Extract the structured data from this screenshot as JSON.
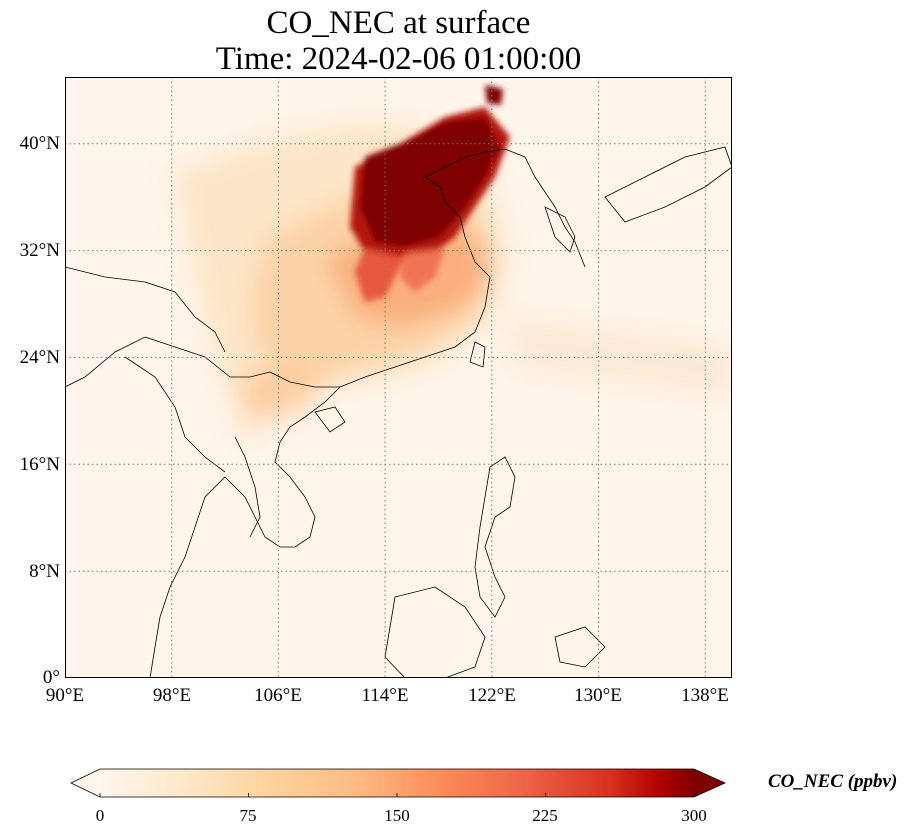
{
  "map": {
    "title_line1": "CO_NEC at surface",
    "title_line2": "Time: 2024-02-06 01:00:00",
    "lon_ticks": [
      "90°E",
      "98°E",
      "106°E",
      "114°E",
      "122°E",
      "130°E",
      "138°E"
    ],
    "lat_ticks": [
      "40°N",
      "32°N",
      "24°N",
      "16°N",
      "8°N",
      "0°"
    ],
    "lon_range": [
      90,
      140
    ],
    "lat_range": [
      0,
      45
    ],
    "gridlines": "dotted",
    "colormap": "OrRd",
    "colors": {
      "low": "#fff7ec",
      "mid": "#fdbb84",
      "high": "#d7301f",
      "max": "#7f0000",
      "coast": "#000000",
      "grid": "#7a7a7a"
    }
  },
  "colorbar": {
    "label": "CO_NEC (ppbv)",
    "ticks": [
      "0",
      "75",
      "150",
      "225",
      "300"
    ],
    "range": [
      0,
      300
    ],
    "extend": "both"
  }
}
